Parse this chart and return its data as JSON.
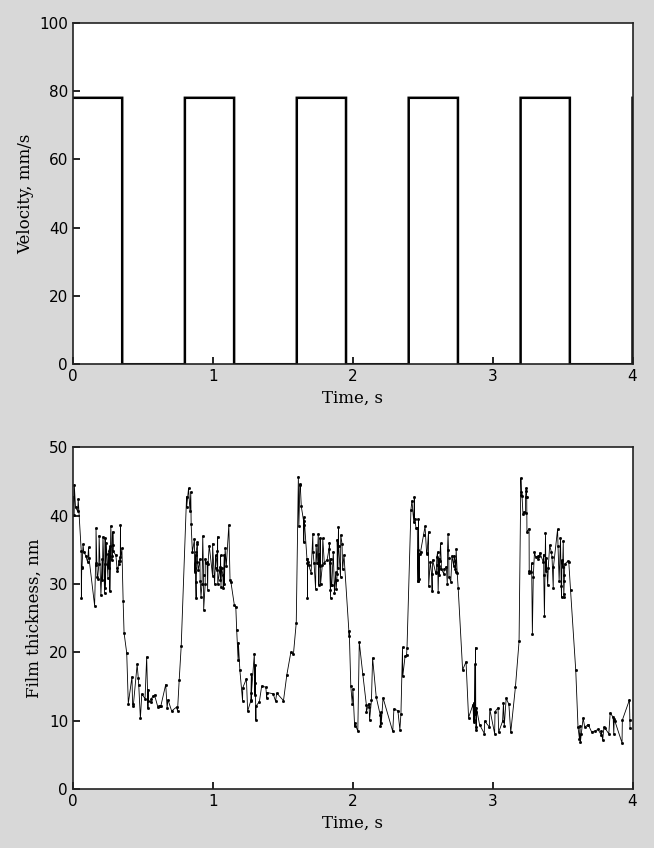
{
  "fig_width": 6.54,
  "fig_height": 8.48,
  "dpi": 100,
  "background_color": "#d8d8d8",
  "plot_bg_color": "#ffffff",
  "top_plot": {
    "ylabel": "Velocity, mm/s",
    "xlabel": "Time, s",
    "xlim": [
      0,
      4
    ],
    "ylim": [
      0,
      100
    ],
    "yticks": [
      0,
      20,
      40,
      60,
      80,
      100
    ],
    "xticks": [
      0,
      1,
      2,
      3,
      4
    ],
    "velocity_high": 78,
    "velocity_low": 0,
    "period": 0.8,
    "duty_high": 0.44,
    "line_color": "#000000",
    "line_width": 1.8
  },
  "bottom_plot": {
    "ylabel": "Film thickness, nm",
    "xlabel": "Time, s",
    "xlim": [
      0,
      4
    ],
    "ylim": [
      0,
      50
    ],
    "yticks": [
      0,
      10,
      20,
      30,
      40,
      50
    ],
    "xticks": [
      0,
      1,
      2,
      3,
      4
    ],
    "line_color": "#000000",
    "line_width": 0.6,
    "marker": "s",
    "markersize": 1.0,
    "seed": 12345,
    "n_points": 500
  }
}
